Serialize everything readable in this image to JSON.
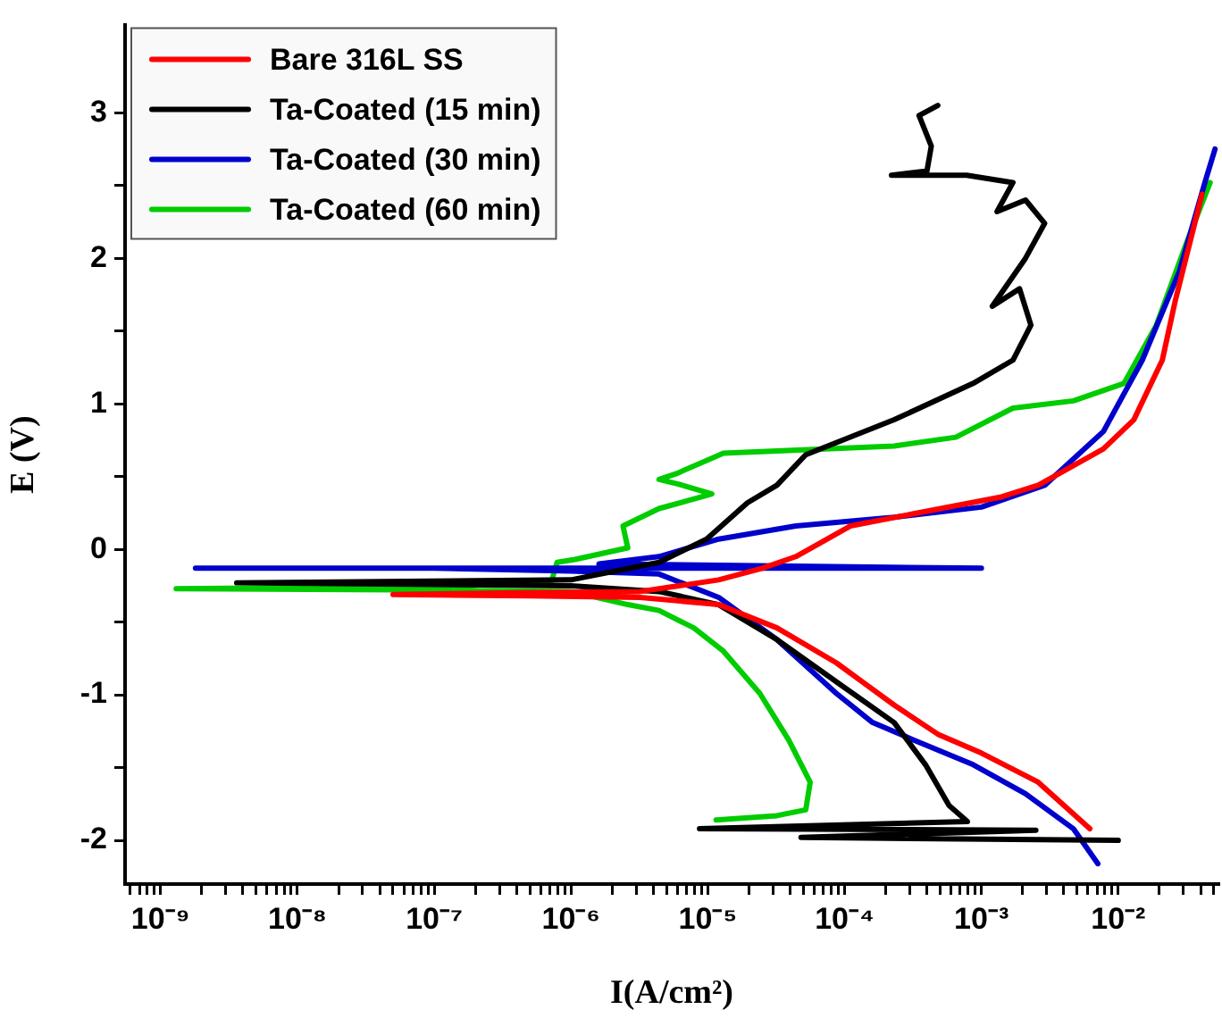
{
  "chart_data": {
    "type": "line",
    "xlabel": "I(A/cm²)",
    "ylabel": "E (V)",
    "log": "x",
    "grid": false,
    "legend": "top left",
    "marker": "none",
    "line_style": "solid",
    "xlim": [
      5.5e-10,
      0.054
    ],
    "ylim": [
      -2.3,
      3.6
    ],
    "xticks": [
      {
        "value": 6e-10,
        "label": null
      },
      {
        "value": 7e-10,
        "label": null
      },
      {
        "value": 8e-10,
        "label": null
      },
      {
        "value": 9e-10,
        "label": null
      },
      {
        "value": 1e-09,
        "label": "10⁻⁹"
      },
      {
        "value": 2e-09,
        "label": null
      },
      {
        "value": 3e-09,
        "label": null
      },
      {
        "value": 4e-09,
        "label": null
      },
      {
        "value": 5e-09,
        "label": null
      },
      {
        "value": 6e-09,
        "label": null
      },
      {
        "value": 7e-09,
        "label": null
      },
      {
        "value": 8e-09,
        "label": null
      },
      {
        "value": 9e-09,
        "label": null
      },
      {
        "value": 1e-08,
        "label": "10⁻⁸"
      },
      {
        "value": 2e-08,
        "label": null
      },
      {
        "value": 3e-08,
        "label": null
      },
      {
        "value": 4e-08,
        "label": null
      },
      {
        "value": 5e-08,
        "label": null
      },
      {
        "value": 6e-08,
        "label": null
      },
      {
        "value": 7e-08,
        "label": null
      },
      {
        "value": 8e-08,
        "label": null
      },
      {
        "value": 9e-08,
        "label": null
      },
      {
        "value": 1e-07,
        "label": "10⁻⁷"
      },
      {
        "value": 2e-07,
        "label": null
      },
      {
        "value": 3e-07,
        "label": null
      },
      {
        "value": 4e-07,
        "label": null
      },
      {
        "value": 5e-07,
        "label": null
      },
      {
        "value": 6e-07,
        "label": null
      },
      {
        "value": 7e-07,
        "label": null
      },
      {
        "value": 8e-07,
        "label": null
      },
      {
        "value": 9e-07,
        "label": null
      },
      {
        "value": 1e-06,
        "label": "10⁻⁶"
      },
      {
        "value": 2e-06,
        "label": null
      },
      {
        "value": 3e-06,
        "label": null
      },
      {
        "value": 4e-06,
        "label": null
      },
      {
        "value": 5e-06,
        "label": null
      },
      {
        "value": 6e-06,
        "label": null
      },
      {
        "value": 7e-06,
        "label": null
      },
      {
        "value": 8e-06,
        "label": null
      },
      {
        "value": 9e-06,
        "label": null
      },
      {
        "value": 1e-05,
        "label": "10⁻⁵"
      },
      {
        "value": 2e-05,
        "label": null
      },
      {
        "value": 3e-05,
        "label": null
      },
      {
        "value": 4e-05,
        "label": null
      },
      {
        "value": 5e-05,
        "label": null
      },
      {
        "value": 6e-05,
        "label": null
      },
      {
        "value": 7e-05,
        "label": null
      },
      {
        "value": 8e-05,
        "label": null
      },
      {
        "value": 9e-05,
        "label": null
      },
      {
        "value": 0.0001,
        "label": "10⁻⁴"
      },
      {
        "value": 0.0002,
        "label": null
      },
      {
        "value": 0.0003,
        "label": null
      },
      {
        "value": 0.0004,
        "label": null
      },
      {
        "value": 0.0005,
        "label": null
      },
      {
        "value": 0.0006,
        "label": null
      },
      {
        "value": 0.0007,
        "label": null
      },
      {
        "value": 0.0008,
        "label": null
      },
      {
        "value": 0.0009,
        "label": null
      },
      {
        "value": 0.001,
        "label": "10⁻³"
      },
      {
        "value": 0.002,
        "label": null
      },
      {
        "value": 0.003,
        "label": null
      },
      {
        "value": 0.004,
        "label": null
      },
      {
        "value": 0.005,
        "label": null
      },
      {
        "value": 0.006,
        "label": null
      },
      {
        "value": 0.007,
        "label": null
      },
      {
        "value": 0.008,
        "label": null
      },
      {
        "value": 0.009,
        "label": null
      },
      {
        "value": 0.01,
        "label": "10⁻²"
      },
      {
        "value": 0.02,
        "label": null
      },
      {
        "value": 0.03,
        "label": null
      },
      {
        "value": 0.04,
        "label": null
      },
      {
        "value": 0.05,
        "label": null
      }
    ],
    "yticks": [
      -2,
      {
        "value": -1.5,
        "label": null
      },
      -1,
      {
        "value": -0.5,
        "label": null
      },
      0,
      {
        "value": 0.5,
        "label": null
      },
      1,
      {
        "value": 1.5,
        "label": null
      },
      2,
      {
        "value": 2.5,
        "label": null
      },
      3
    ],
    "series": [
      {
        "name": "Bare 316L SS",
        "color": "#ff0000",
        "x": [
          0.0062,
          0.0026,
          0.001,
          0.00048,
          0.00023,
          8.7e-05,
          3.2e-05,
          1.2e-05,
          3.2e-06,
          5e-07,
          5e-08,
          3.2e-07,
          3.2e-06,
          1.2e-05,
          2.5e-05,
          4.4e-05,
          0.00011,
          0.00039,
          0.0014,
          0.0026,
          0.0078,
          0.013,
          0.021,
          0.026,
          0.041
        ],
        "values": [
          -1.92,
          -1.6,
          -1.4,
          -1.27,
          -1.07,
          -0.78,
          -0.54,
          -0.38,
          -0.33,
          -0.32,
          -0.31,
          -0.3,
          -0.29,
          -0.21,
          -0.13,
          -0.05,
          0.16,
          0.26,
          0.36,
          0.44,
          0.69,
          0.89,
          1.3,
          1.7,
          2.44
        ]
      },
      {
        "name": "Ta-Coated (15 min)",
        "color": "#000000",
        "x": [
          0.01,
          4.8e-05,
          0.0025,
          8.7e-06,
          0.00079,
          0.00058,
          0.00039,
          0.00023,
          8.7e-05,
          3.2e-05,
          1.2e-05,
          4.4e-06,
          1e-06,
          3.6e-09,
          1e-06,
          4.4e-06,
          9.8e-06,
          1.95e-05,
          3.2e-05,
          5.2e-05,
          0.00023,
          0.00087,
          0.0017,
          0.0023,
          0.0019,
          0.0012,
          0.0021,
          0.0029,
          0.0021,
          0.0013,
          0.0017,
          0.00078,
          0.00022,
          0.0004,
          0.00043,
          0.00035,
          0.00048
        ],
        "values": [
          -2.0,
          -1.98,
          -1.93,
          -1.92,
          -1.87,
          -1.76,
          -1.48,
          -1.19,
          -0.91,
          -0.62,
          -0.38,
          -0.29,
          -0.25,
          -0.23,
          -0.21,
          -0.09,
          0.07,
          0.32,
          0.44,
          0.65,
          0.89,
          1.14,
          1.3,
          1.54,
          1.79,
          1.67,
          2.0,
          2.24,
          2.4,
          2.32,
          2.52,
          2.57,
          2.57,
          2.6,
          2.77,
          2.98,
          3.05
        ]
      },
      {
        "name": "Ta-Coated (30 min)",
        "color": "#0000cc",
        "x": [
          0.0071,
          0.0047,
          0.0021,
          0.00087,
          0.00032,
          0.00016,
          8.7e-05,
          3.2e-05,
          1.2e-05,
          4.4e-06,
          1e-06,
          1e-07,
          1.8e-09,
          0.001,
          1.6e-06,
          4.4e-06,
          1.2e-05,
          4.4e-05,
          0.00023,
          0.001,
          0.0029,
          0.0078,
          0.015,
          0.028,
          0.043,
          0.051
        ],
        "values": [
          -2.16,
          -1.92,
          -1.68,
          -1.48,
          -1.31,
          -1.19,
          -0.99,
          -0.62,
          -0.33,
          -0.17,
          -0.15,
          -0.13,
          -0.13,
          -0.13,
          -0.1,
          -0.05,
          0.07,
          0.16,
          0.22,
          0.29,
          0.44,
          0.81,
          1.3,
          1.91,
          2.52,
          2.75
        ]
      },
      {
        "name": "Ta-Coated (60 min)",
        "color": "#00cc00",
        "x": [
          1.15e-05,
          3.2e-05,
          5.2e-05,
          5.6e-05,
          3.9e-05,
          2.4e-05,
          1.3e-05,
          7.9e-06,
          4.4e-06,
          2.6e-06,
          1e-06,
          1e-07,
          1.3e-09,
          1e-07,
          7.2e-07,
          7.9e-07,
          1.07e-06,
          2.6e-06,
          2.4e-06,
          4.4e-06,
          1.07e-05,
          6e-06,
          4.4e-06,
          5.9e-06,
          1.3e-05,
          0.00023,
          0.00065,
          0.0017,
          0.0047,
          0.011,
          0.019,
          0.032,
          0.047
        ],
        "values": [
          -1.86,
          -1.83,
          -1.79,
          -1.6,
          -1.31,
          -0.99,
          -0.7,
          -0.54,
          -0.42,
          -0.38,
          -0.29,
          -0.28,
          -0.27,
          -0.26,
          -0.22,
          -0.09,
          -0.07,
          0.01,
          0.16,
          0.28,
          0.38,
          0.45,
          0.48,
          0.52,
          0.66,
          0.71,
          0.77,
          0.97,
          1.02,
          1.14,
          1.54,
          2.12,
          2.52
        ]
      }
    ]
  }
}
